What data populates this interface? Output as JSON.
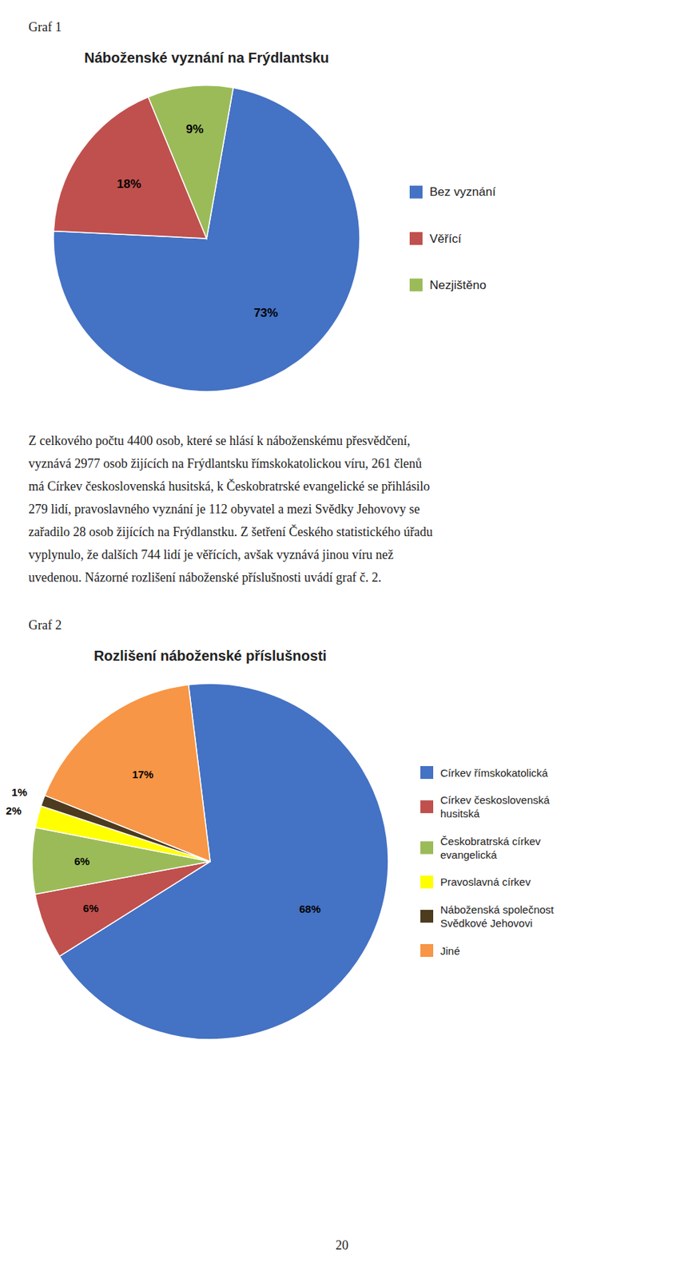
{
  "chart_data": [
    {
      "type": "pie",
      "subtitle": "Graf 1",
      "title": "Náboženské vyznání na Frýdlantsku",
      "categories": [
        "Bez vyznání",
        "Věřící",
        "Nezjištěno"
      ],
      "values": [
        73,
        18,
        9
      ],
      "value_labels": [
        "73%",
        "18%",
        "9%"
      ],
      "colors": [
        "#4472C4",
        "#C0504D",
        "#9BBB59"
      ],
      "data_labels": true,
      "legend": "right"
    },
    {
      "type": "pie",
      "subtitle": "Graf 2",
      "title": "Rozlišení náboženské příslušnosti",
      "categories": [
        "Církev římskokatolická",
        "Církev československá\nhusitská",
        "Českobratrská církev\nevangelická",
        "Pravoslavná církev",
        "Náboženská společnost\nSvědkové Jehovovi",
        "Jiné"
      ],
      "values": [
        68,
        6,
        6,
        2,
        1,
        17
      ],
      "value_labels": [
        "68%",
        "6%",
        "6%",
        "2%",
        "1%",
        "17%"
      ],
      "colors": [
        "#4472C4",
        "#C0504D",
        "#9BBB59",
        "#FFFF00",
        "#4D3B1F",
        "#F79646"
      ],
      "data_labels": true,
      "legend": "right"
    }
  ],
  "text": [
    "Z celkového počtu 4400 osob, které se hlásí k náboženskému přesvědčení,",
    "vyznává 2977 osob žijících na Frýdlantsku římskokatolickou víru, 261 členů",
    "má Církev československá husitská, k Českobratrské evangelické se přihlásilo",
    "279 lidí, pravoslavného vyznání je 112 obyvatel a mezi Svědky Jehovovy se",
    "zařadilo 28 osob žijících na Frýdlanstku. Z šetření Českého statistického úřadu",
    "vyplynulo, že dalších 744 lidí je věřících, avšak vyznává jinou víru než",
    "uvedenou. Názorné rozlišení náboženské příslušnosti uvádí graf č. 2."
  ],
  "page_number": "20"
}
